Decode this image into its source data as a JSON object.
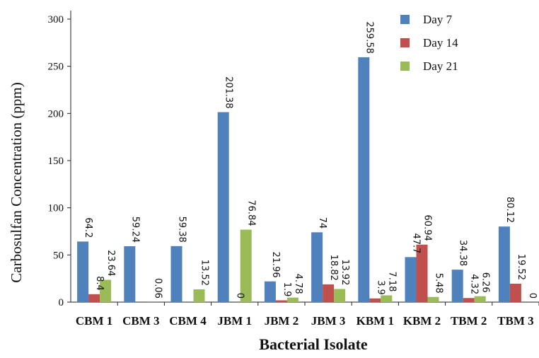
{
  "chart_data": {
    "type": "bar",
    "title": "",
    "xlabel": "Bacterial Isolate",
    "ylabel": "Carbosulfan Concentration (ppm)",
    "ylim": [
      0,
      300
    ],
    "yticks": [
      0,
      50,
      100,
      150,
      200,
      250,
      300
    ],
    "grid": false,
    "legend_position": "top-right",
    "categories": [
      "CBM 1",
      "CBM 3",
      "CBM 4",
      "JBM 1",
      "JBM 2",
      "JBM 3",
      "KBM 1",
      "KBM 2",
      "TBM 2",
      "TBM 3"
    ],
    "series": [
      {
        "name": "Day 7",
        "color": "#4f81bd",
        "values": [
          64.2,
          59.24,
          59.38,
          201.38,
          21.96,
          74,
          259.58,
          47.7,
          34.38,
          80.12
        ],
        "labels": [
          "64.2",
          "59.24",
          "59.38",
          "201.38",
          "21.96",
          "74",
          "259.58",
          "47.7",
          "34.38",
          "80.12"
        ]
      },
      {
        "name": "Day 14",
        "color": "#c0504d",
        "values": [
          8.4,
          0,
          0,
          0,
          1.9,
          18.82,
          3.9,
          60.94,
          4.32,
          19.52
        ],
        "labels": [
          "8.4",
          "",
          "",
          "0",
          "1.9",
          "18.82",
          "3.9",
          "60.94",
          "4.32",
          "19.52"
        ]
      },
      {
        "name": "Day 21",
        "color": "#9bbb59",
        "values": [
          23.64,
          0.06,
          13.52,
          76.84,
          4.78,
          13.92,
          7.18,
          5.48,
          6.26,
          0
        ],
        "labels": [
          "23.64",
          "0.06",
          "13.52",
          "76.84",
          "4.78",
          "13.92",
          "7.18",
          "5.48",
          "6.26",
          "0"
        ]
      }
    ]
  }
}
